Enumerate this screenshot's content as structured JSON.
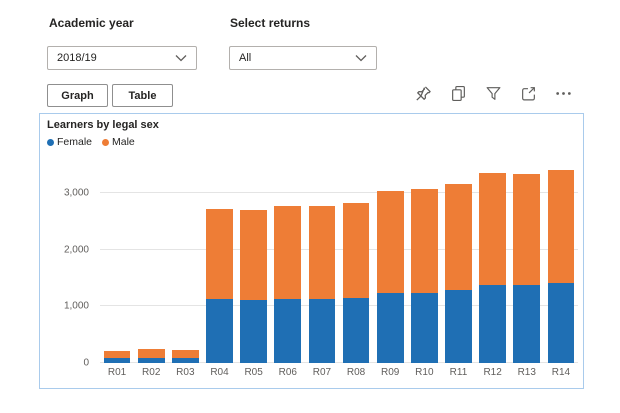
{
  "filters": {
    "academic_year": {
      "label": "Academic year",
      "value": "2018/19"
    },
    "select_returns": {
      "label": "Select returns",
      "value": "All"
    }
  },
  "view_toggle": {
    "graph": "Graph",
    "table": "Table"
  },
  "toolbar": {
    "icons": [
      "pin-icon",
      "copy-icon",
      "filter-icon",
      "focus-mode-icon",
      "more-options-icon"
    ]
  },
  "chart_data": {
    "type": "bar",
    "stacked": true,
    "title": "Learners by legal sex",
    "categories": [
      "R01",
      "R02",
      "R03",
      "R04",
      "R05",
      "R06",
      "R07",
      "R08",
      "R09",
      "R10",
      "R11",
      "R12",
      "R13",
      "R14"
    ],
    "series": [
      {
        "name": "Female",
        "color": "#1F6FB4",
        "values": [
          80,
          90,
          90,
          1130,
          1120,
          1130,
          1130,
          1150,
          1240,
          1240,
          1290,
          1380,
          1380,
          1420
        ]
      },
      {
        "name": "Male",
        "color": "#EE7D36",
        "values": [
          125,
          155,
          140,
          1600,
          1590,
          1640,
          1650,
          1680,
          1800,
          1830,
          1880,
          1980,
          1970,
          2000
        ]
      }
    ],
    "ylim": [
      0,
      3500
    ],
    "yticks": [
      0,
      1000,
      2000,
      3000
    ],
    "ytick_labels": [
      "0",
      "1,000",
      "2,000",
      "3,000"
    ],
    "grid": true,
    "legend_position": "top-left"
  },
  "colors": {
    "female": "#1F6FB4",
    "male": "#EE7D36",
    "card_border": "#A9CBEC",
    "gridline": "#E4E4E4",
    "axis_text": "#605E5C",
    "text": "#252423",
    "icon": "#5F5E5C",
    "control_border": "#B3B0AD"
  }
}
